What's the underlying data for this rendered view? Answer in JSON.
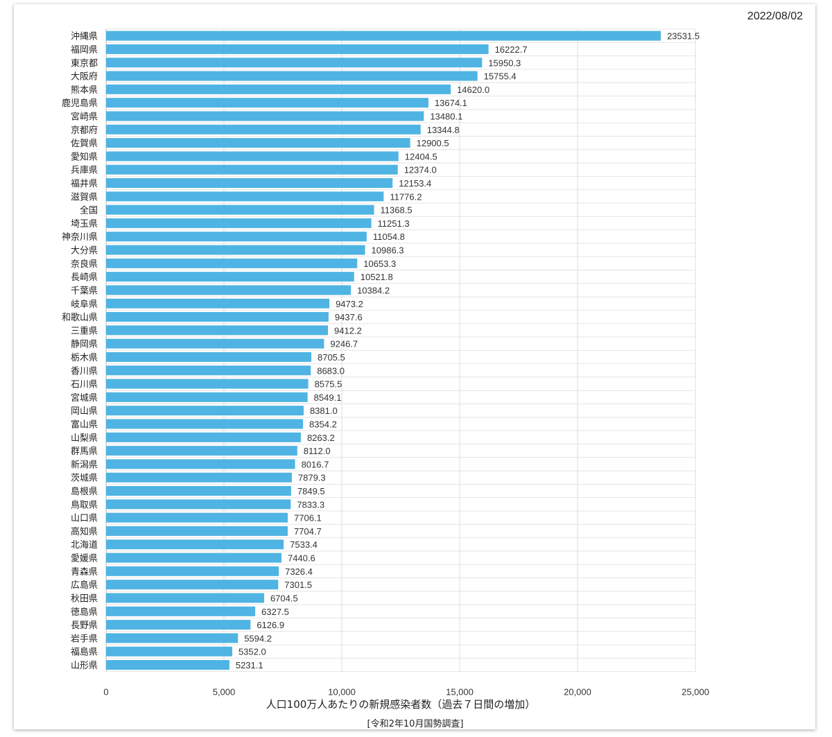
{
  "date": "2022/08/02",
  "chart_data": {
    "type": "bar",
    "orientation": "horizontal",
    "xlabel": "人口100万人あたりの新規感染者数（過去７日間の増加）",
    "xsublabel": "[令和2年10月国勢調査]",
    "xlim": [
      0,
      25000
    ],
    "xticks": [
      "0",
      "5,000",
      "10,000",
      "15,000",
      "20,000",
      "25,000"
    ],
    "grid": true,
    "bar_color": "#4FB4E3",
    "categories": [
      "沖縄県",
      "福岡県",
      "東京都",
      "大阪府",
      "熊本県",
      "鹿児島県",
      "宮崎県",
      "京都府",
      "佐賀県",
      "愛知県",
      "兵庫県",
      "福井県",
      "滋賀県",
      "全国",
      "埼玉県",
      "神奈川県",
      "大分県",
      "奈良県",
      "長崎県",
      "千葉県",
      "岐阜県",
      "和歌山県",
      "三重県",
      "静岡県",
      "栃木県",
      "香川県",
      "石川県",
      "宮城県",
      "岡山県",
      "富山県",
      "山梨県",
      "群馬県",
      "新潟県",
      "茨城県",
      "島根県",
      "鳥取県",
      "山口県",
      "高知県",
      "北海道",
      "愛媛県",
      "青森県",
      "広島県",
      "秋田県",
      "徳島県",
      "長野県",
      "岩手県",
      "福島県",
      "山形県"
    ],
    "values": [
      23531.5,
      16222.7,
      15950.3,
      15755.4,
      14620.0,
      13674.1,
      13480.1,
      13344.8,
      12900.5,
      12404.5,
      12374.0,
      12153.4,
      11776.2,
      11368.5,
      11251.3,
      11054.8,
      10986.3,
      10653.3,
      10521.8,
      10384.2,
      9473.2,
      9437.6,
      9412.2,
      9246.7,
      8705.5,
      8683.0,
      8575.5,
      8549.1,
      8381.0,
      8354.2,
      8263.2,
      8112.0,
      8016.7,
      7879.3,
      7849.5,
      7833.3,
      7706.1,
      7704.7,
      7533.4,
      7440.6,
      7326.4,
      7301.5,
      6704.5,
      6327.5,
      6126.9,
      5594.2,
      5352.0,
      5231.1
    ],
    "value_labels": [
      "23531.5",
      "16222.7",
      "15950.3",
      "15755.4",
      "14620.0",
      "13674.1",
      "13480.1",
      "13344.8",
      "12900.5",
      "12404.5",
      "12374.0",
      "12153.4",
      "11776.2",
      "11368.5",
      "11251.3",
      "11054.8",
      "10986.3",
      "10653.3",
      "10521.8",
      "10384.2",
      "9473.2",
      "9437.6",
      "9412.2",
      "9246.7",
      "8705.5",
      "8683.0",
      "8575.5",
      "8549.1",
      "8381.0",
      "8354.2",
      "8263.2",
      "8112.0",
      "8016.7",
      "7879.3",
      "7849.5",
      "7833.3",
      "7706.1",
      "7704.7",
      "7533.4",
      "7440.6",
      "7326.4",
      "7301.5",
      "6704.5",
      "6327.5",
      "6126.9",
      "5594.2",
      "5352.0",
      "5231.1"
    ]
  }
}
